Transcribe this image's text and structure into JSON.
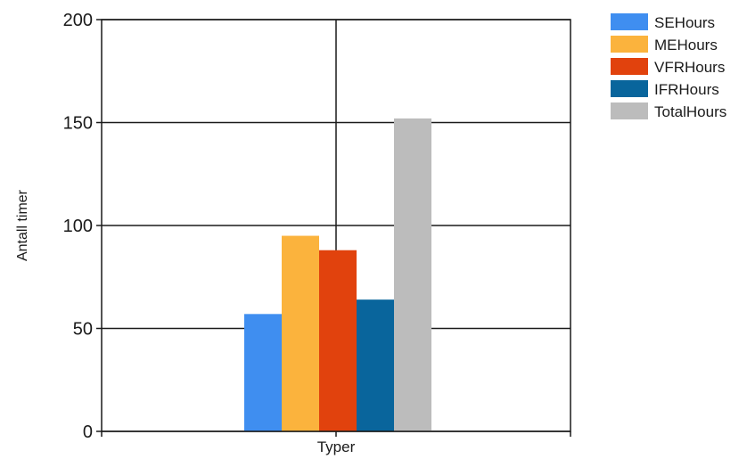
{
  "chart_data": {
    "type": "bar",
    "categories": [
      "Typer"
    ],
    "series": [
      {
        "name": "SEHours",
        "values": [
          57
        ],
        "color": "#3f8ef0"
      },
      {
        "name": "MEHours",
        "values": [
          95
        ],
        "color": "#fbb33d"
      },
      {
        "name": "VFRHours",
        "values": [
          88
        ],
        "color": "#e1420d"
      },
      {
        "name": "IFRHours",
        "values": [
          64
        ],
        "color": "#09659c"
      },
      {
        "name": "TotalHours",
        "values": [
          152
        ],
        "color": "#bcbcbc"
      }
    ],
    "title": "",
    "xlabel": "",
    "ylabel": "Antall timer",
    "ylim": [
      0,
      200
    ],
    "yticks": [
      0,
      50,
      100,
      150,
      200
    ],
    "grid": true,
    "legend": "right"
  }
}
